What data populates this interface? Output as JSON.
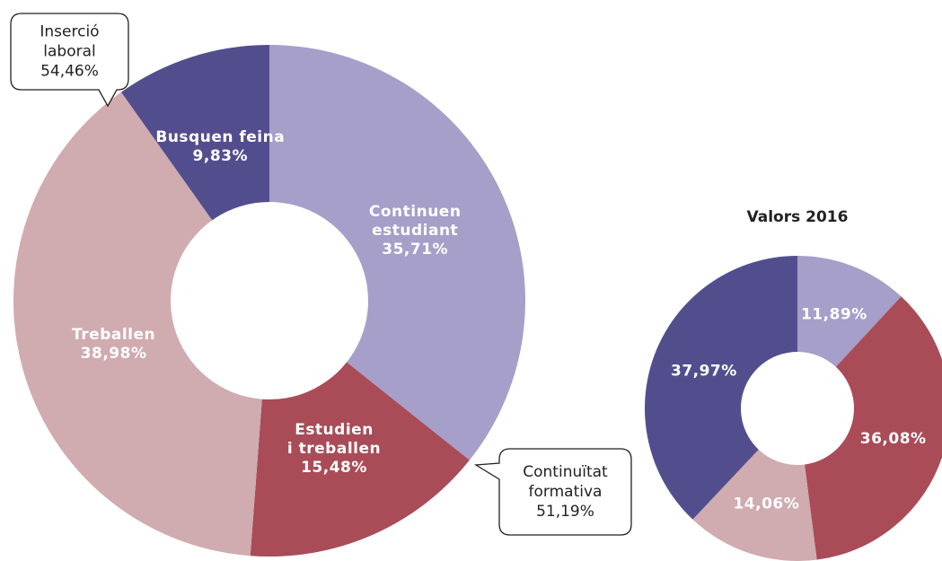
{
  "chart_data": [
    {
      "type": "donut",
      "categories": [
        "Continuen\nestudiant",
        "Estudien\ni treballen",
        "Treballen",
        "Busquen feina"
      ],
      "values": [
        35.71,
        15.48,
        38.98,
        9.83
      ],
      "value_labels": [
        "35,71%",
        "15,48%",
        "38,98%",
        "9,83%"
      ],
      "colors": [
        "#a59fc9",
        "#a94c58",
        "#d0abb0",
        "#524e8e"
      ],
      "annotations": [
        {
          "text": "Inserció\nlaboral",
          "value": 54.46,
          "value_label": "54,46%"
        },
        {
          "text": "Continuïtat\nformativa",
          "value": 51.19,
          "value_label": "51,19%"
        }
      ]
    },
    {
      "type": "donut",
      "title": "Valors 2016",
      "values": [
        11.89,
        36.08,
        14.06,
        37.97
      ],
      "value_labels": [
        "11,89%",
        "36,08%",
        "14,06%",
        "37,97%"
      ],
      "colors": [
        "#a59fc9",
        "#a94c58",
        "#d0abb0",
        "#524e8e"
      ]
    }
  ]
}
